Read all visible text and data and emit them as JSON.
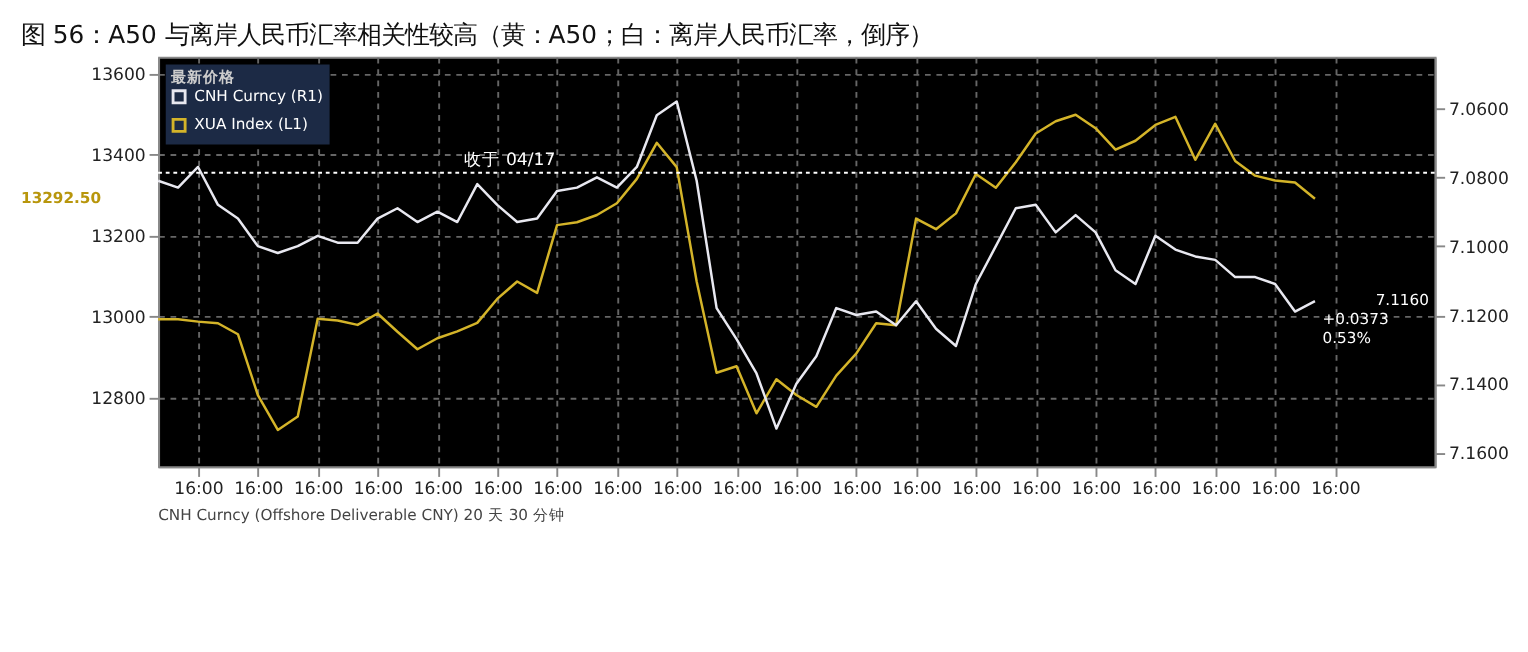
{
  "chart_data": {
    "type": "line",
    "title": "图 56：A50 与离岸人民币汇率相关性较高（黄：A50；白：离岸人民币汇率，倒序）",
    "legend_title": "最新价格",
    "categories": [
      null,
      null,
      "16:00",
      null,
      null,
      "16:00",
      null,
      null,
      "16:00",
      null,
      null,
      "16:00",
      null,
      null,
      "16:00",
      null,
      null,
      "16:00",
      null,
      null,
      "16:00",
      null,
      null,
      "16:00",
      null,
      null,
      "16:00",
      null,
      null,
      "16:00",
      null,
      null,
      "16:00",
      null,
      null,
      "16:00",
      null,
      null,
      "16:00",
      null,
      null,
      "16:00",
      null,
      null,
      "16:00",
      null,
      null,
      "16:00",
      null,
      null,
      "16:00",
      null,
      null,
      "16:00",
      null,
      null,
      "16:00",
      null,
      null,
      "16:00",
      null,
      null,
      null,
      null,
      null
    ],
    "ylim": [
      12630,
      13640
    ],
    "yticks": [
      12800,
      13000,
      13200,
      13400,
      13600
    ],
    "y2lim": [
      7.164,
      7.045
    ],
    "y2ticks": [
      {
        "value": 7.06,
        "label": "7.0600"
      },
      {
        "value": 7.08,
        "label": "7.0800"
      },
      {
        "value": 7.1,
        "label": "7.1000"
      },
      {
        "value": 7.12,
        "label": "7.1200"
      },
      {
        "value": 7.14,
        "label": "7.1400"
      },
      {
        "value": 7.16,
        "label": "7.1600"
      }
    ],
    "grid": true,
    "legend": "top left",
    "series": [
      {
        "name": "CNH Curncy (R1)",
        "color": "#e8e8f0",
        "axis": "y2",
        "values": [
          7.081,
          7.083,
          7.077,
          7.088,
          7.092,
          7.1,
          7.102,
          7.1,
          7.097,
          7.099,
          7.099,
          7.092,
          7.089,
          7.093,
          7.09,
          7.093,
          7.082,
          7.088,
          7.093,
          7.092,
          7.084,
          7.083,
          7.08,
          7.083,
          7.077,
          7.062,
          7.058,
          7.081,
          7.118,
          7.127,
          7.137,
          7.153,
          7.14,
          7.132,
          7.118,
          7.12,
          7.119,
          7.123,
          7.116,
          7.124,
          7.129,
          7.111,
          7.1,
          7.089,
          7.088,
          7.096,
          7.091,
          7.096,
          7.107,
          7.111,
          7.097,
          7.101,
          7.103,
          7.104,
          7.109,
          7.109,
          7.111,
          7.119,
          7.116,
          null,
          null,
          null,
          null,
          null,
          null
        ]
      },
      {
        "name": "XUA Index (L1)",
        "color": "#d4b429",
        "values": [
          12993,
          12993,
          12987,
          12983,
          12956,
          12806,
          12720,
          12753,
          12994,
          12990,
          12979,
          13007,
          12962,
          12919,
          12946,
          12963,
          12984,
          13043,
          13086,
          13058,
          13225,
          13232,
          13250,
          13279,
          13339,
          13428,
          13368,
          13086,
          12861,
          12877,
          12761,
          12845,
          12806,
          12777,
          12854,
          12908,
          12983,
          12978,
          13241,
          13215,
          13254,
          13351,
          13317,
          13380,
          13451,
          13481,
          13497,
          13464,
          13411,
          13433,
          13472,
          13492,
          13386,
          13475,
          13383,
          13347,
          13335,
          13330,
          13290,
          null,
          null,
          null,
          null,
          null,
          null
        ]
      }
    ],
    "ref_lines": [
      {
        "axis": "y2",
        "value": 7.0787,
        "label": "收于 04/17",
        "color": "#ffffff",
        "line_style": "dotted"
      }
    ],
    "annotations": [
      "13292.50",
      "7.1160",
      "+0.0373",
      "0.53%",
      "CNH Curncy (Offshore Deliverable CNY) 20 天 30 分钟"
    ]
  }
}
